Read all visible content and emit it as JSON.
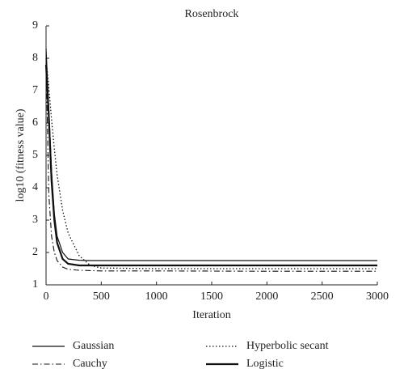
{
  "chart_data": {
    "type": "line",
    "title": "Rosenbrock",
    "x_label": "Iteration",
    "y_label": "log10 (fitness value)",
    "x": [
      0,
      25,
      50,
      75,
      100,
      150,
      200,
      300,
      400,
      500,
      1000,
      2000,
      3000
    ],
    "series": [
      {
        "name": "Gaussian",
        "color": "#111111",
        "dash": "none",
        "width": 1.2,
        "values": [
          8.3,
          6.4,
          4.5,
          3.2,
          2.5,
          2.0,
          1.8,
          1.76,
          1.75,
          1.75,
          1.75,
          1.75,
          1.75
        ]
      },
      {
        "name": "Cauchy",
        "color": "#111111",
        "dash": "7 3 1.5 3",
        "width": 1.1,
        "values": [
          8.0,
          3.8,
          2.5,
          2.0,
          1.75,
          1.55,
          1.48,
          1.45,
          1.44,
          1.43,
          1.43,
          1.42,
          1.42
        ]
      },
      {
        "name": "Hyperbolic secant",
        "color": "#111111",
        "dash": "1.5 2.5",
        "width": 1.3,
        "values": [
          8.0,
          7.1,
          6.1,
          5.2,
          4.4,
          3.3,
          2.6,
          1.9,
          1.6,
          1.52,
          1.5,
          1.5,
          1.5
        ]
      },
      {
        "name": "Logistic",
        "color": "#111111",
        "dash": "none",
        "width": 2.2,
        "values": [
          7.8,
          6.2,
          4.2,
          3.0,
          2.3,
          1.8,
          1.65,
          1.6,
          1.6,
          1.6,
          1.6,
          1.6,
          1.6
        ]
      }
    ],
    "xlim": [
      0,
      3000
    ],
    "xticks": [
      0,
      500,
      1000,
      1500,
      2000,
      2500,
      3000
    ],
    "ylim": [
      1,
      9
    ],
    "yticks": [
      1,
      2,
      3,
      4,
      5,
      6,
      7,
      8,
      9
    ],
    "grid": false
  }
}
